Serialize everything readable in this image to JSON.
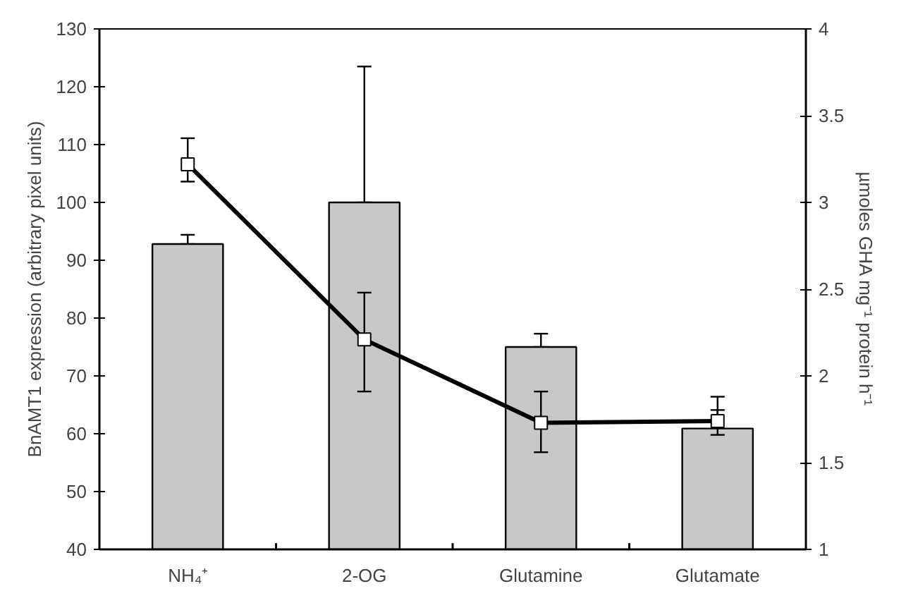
{
  "chart_data": {
    "type": "bar",
    "ylabel": "BnAMT1 expression (arbitrary pixel units)",
    "y2label": "µmoles GHA mg⁻¹ protein h⁻¹",
    "categories": [
      "NH₄⁺",
      "2-OG",
      "Glutamine",
      "Glutamate"
    ],
    "series": [
      {
        "color": "#c8c8c8",
        "values": [
          92.8,
          100,
          75.0,
          60.9
        ],
        "errors": [
          [
            92.8,
            94.4
          ],
          [
            100,
            123.5
          ],
          [
            75.0,
            77.3
          ],
          [
            60.9,
            64.1
          ]
        ]
      },
      {
        "type": "line",
        "axis": "y2",
        "color": "#000000",
        "marker": "square",
        "line_style": "solid",
        "values": [
          3.22,
          2.21,
          1.73,
          1.74
        ],
        "errors": [
          [
            3.12,
            3.37
          ],
          [
            1.91,
            2.48
          ],
          [
            1.56,
            1.91
          ],
          [
            1.66,
            1.88
          ]
        ]
      }
    ],
    "ylim": [
      40,
      130
    ],
    "yticks": [
      40,
      50,
      60,
      70,
      80,
      90,
      100,
      110,
      120,
      130
    ],
    "y2lim": [
      1,
      4
    ],
    "y2ticks": [
      1,
      1.5,
      2,
      2.5,
      3,
      3.5,
      4
    ],
    "grid": false
  }
}
